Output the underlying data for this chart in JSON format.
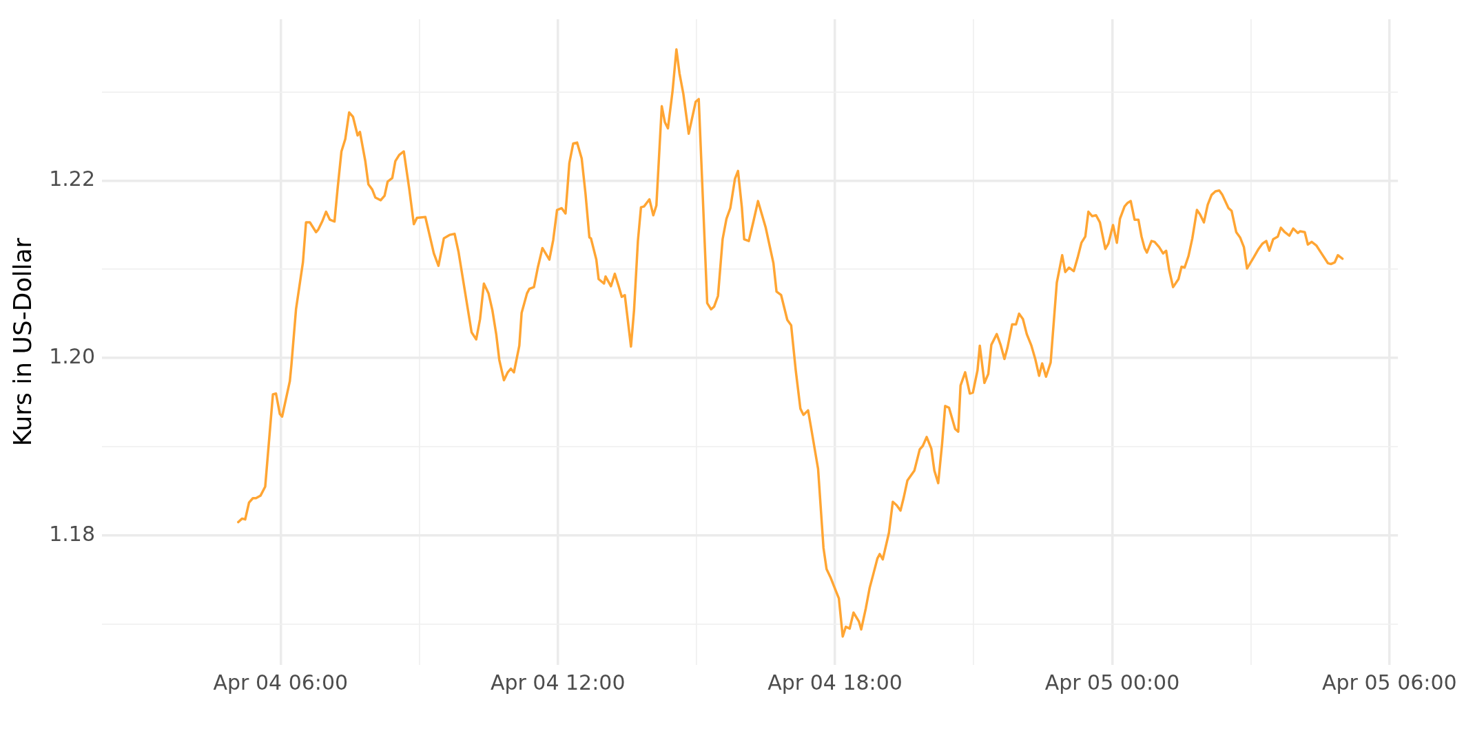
{
  "chart_data": {
    "type": "line",
    "ylabel": "Kurs in US-Dollar",
    "grid": true,
    "legend": false,
    "marker": "none",
    "line_style": "solid",
    "xlim": [
      "--04-04T02:08",
      "--04-05T06:11"
    ],
    "ylim": [
      1.1654,
      1.2382
    ],
    "xticks": [
      {
        "value": "--04-04T06:00",
        "label": "Apr 04 06:00"
      },
      {
        "value": "--04-04T09:00",
        "label": null
      },
      {
        "value": "--04-04T12:00",
        "label": "Apr 04 12:00"
      },
      {
        "value": "--04-04T15:00",
        "label": null
      },
      {
        "value": "--04-04T18:00",
        "label": "Apr 04 18:00"
      },
      {
        "value": "--04-04T21:00",
        "label": null
      },
      {
        "value": "--04-05T00:00",
        "label": "Apr 05 00:00"
      },
      {
        "value": "--04-05T03:00",
        "label": null
      },
      {
        "value": "--04-05T06:00",
        "label": "Apr 05 06:00"
      }
    ],
    "yticks": [
      {
        "value": 1.17,
        "label": null
      },
      1.18,
      {
        "value": 1.19,
        "label": null
      },
      {
        "value": 1.2,
        "label": "1.20"
      },
      {
        "value": 1.21,
        "label": null
      },
      1.22,
      {
        "value": 1.23,
        "label": null
      }
    ],
    "series": [
      {
        "color": "#ffa533",
        "x": [
          "--04-04T05:05",
          "--04-04T05:10",
          "--04-04T05:14",
          "--04-04T05:19",
          "--04-04T05:24",
          "--04-04T05:28",
          "--04-04T05:34",
          "--04-04T05:40",
          "--04-04T05:50",
          "--04-04T05:54",
          "--04-04T05:59",
          "--04-04T06:02",
          "--04-04T06:12",
          "--04-04T06:14",
          "--04-04T06:20",
          "--04-04T06:29",
          "--04-04T06:33",
          "--04-04T06:38",
          "--04-04T06:46",
          "--04-04T06:49",
          "--04-04T06:54",
          "--04-04T06:59",
          "--04-04T07:04",
          "--04-04T07:10",
          "--04-04T07:14",
          "--04-04T07:19",
          "--04-04T07:24",
          "--04-04T07:29",
          "--04-04T07:34",
          "--04-04T07:40",
          "--04-04T07:43",
          "--04-04T07:50",
          "--04-04T07:54",
          "--04-04T07:59",
          "--04-04T08:03",
          "--04-04T08:10",
          "--04-04T08:15",
          "--04-04T08:19",
          "--04-04T08:25",
          "--04-04T08:29",
          "--04-04T08:34",
          "--04-04T08:40",
          "--04-04T08:47",
          "--04-04T08:53",
          "--04-04T08:57",
          "--04-04T09:08",
          "--04-04T09:19",
          "--04-04T09:25",
          "--04-04T09:32",
          "--04-04T09:40",
          "--04-04T09:46",
          "--04-04T09:51",
          "--04-04T10:08",
          "--04-04T10:14",
          "--04-04T10:19",
          "--04-04T10:24",
          "--04-04T10:30",
          "--04-04T10:35",
          "--04-04T10:40",
          "--04-04T10:44",
          "--04-04T10:50",
          "--04-04T10:55",
          "--04-04T10:59",
          "--04-04T11:03",
          "--04-04T11:10",
          "--04-04T11:13",
          "--04-04T11:20",
          "--04-04T11:23",
          "--04-04T11:29",
          "--04-04T11:34",
          "--04-04T11:40",
          "--04-04T11:49",
          "--04-04T11:54",
          "--04-04T11:59",
          "--04-04T12:05",
          "--04-04T12:10",
          "--04-04T12:15",
          "--04-04T12:20",
          "--04-04T12:25",
          "--04-04T12:31",
          "--04-04T12:36",
          "--04-04T12:41",
          "--04-04T12:43",
          "--04-04T12:50",
          "--04-04T12:53",
          "--04-04T13:00",
          "--04-04T13:02",
          "--04-04T13:09",
          "--04-04T13:14",
          "--04-04T13:19",
          "--04-04T13:23",
          "--04-04T13:27",
          "--04-04T13:35",
          "--04-04T13:39",
          "--04-04T13:44",
          "--04-04T13:48",
          "--04-04T13:52",
          "--04-04T13:59",
          "--04-04T14:04",
          "--04-04T14:08",
          "--04-04T14:15",
          "--04-04T14:19",
          "--04-04T14:23",
          "--04-04T14:29",
          "--04-04T14:34",
          "--04-04T14:38",
          "--04-04T14:43",
          "--04-04T14:50",
          "--04-04T14:59",
          "--04-04T15:03",
          "--04-04T15:14",
          "--04-04T15:19",
          "--04-04T15:23",
          "--04-04T15:28",
          "--04-04T15:34",
          "--04-04T15:39",
          "--04-04T15:44",
          "--04-04T15:50",
          "--04-04T15:54",
          "--04-04T15:59",
          "--04-04T16:02",
          "--04-04T16:08",
          "--04-04T16:14",
          "--04-04T16:20",
          "--04-04T16:25",
          "--04-04T16:30",
          "--04-04T16:40",
          "--04-04T16:44",
          "--04-04T16:50",
          "--04-04T16:58",
          "--04-04T17:03",
          "--04-04T17:09",
          "--04-04T17:15",
          "--04-04T17:19",
          "--04-04T17:25",
          "--04-04T17:29",
          "--04-04T17:38",
          "--04-04T17:45",
          "--04-04T17:49",
          "--04-04T17:54",
          "--04-04T17:59",
          "--04-04T18:05",
          "--04-04T18:10",
          "--04-04T18:14",
          "--04-04T18:19",
          "--04-04T18:24",
          "--04-04T18:31",
          "--04-04T18:34",
          "--04-04T18:40",
          "--04-04T18:45",
          "--04-04T18:49",
          "--04-04T18:55",
          "--04-04T18:58",
          "--04-04T19:02",
          "--04-04T19:10",
          "--04-04T19:15",
          "--04-04T19:20",
          "--04-04T19:25",
          "--04-04T19:29",
          "--04-04T19:34",
          "--04-04T19:43",
          "--04-04T19:50",
          "--04-04T19:54",
          "--04-04T19:59",
          "--04-04T20:05",
          "--04-04T20:09",
          "--04-04T20:14",
          "--04-04T20:19",
          "--04-04T20:23",
          "--04-04T20:28",
          "--04-04T20:36",
          "--04-04T20:40",
          "--04-04T20:43",
          "--04-04T20:49",
          "--04-04T20:55",
          "--04-04T20:59",
          "--04-04T21:05",
          "--04-04T21:08",
          "--04-04T21:14",
          "--04-04T21:19",
          "--04-04T21:23",
          "--04-04T21:30",
          "--04-04T21:35",
          "--04-04T21:40",
          "--04-04T21:44",
          "--04-04T21:50",
          "--04-04T21:55",
          "--04-04T21:59",
          "--04-04T22:04",
          "--04-04T22:09",
          "--04-04T22:15",
          "--04-04T22:20",
          "--04-04T22:25",
          "--04-04T22:29",
          "--04-04T22:34",
          "--04-04T22:40",
          "--04-04T22:48",
          "--04-04T22:55",
          "--04-04T22:59",
          "--04-04T23:04",
          "--04-04T23:10",
          "--04-04T23:15",
          "--04-04T23:20",
          "--04-04T23:25",
          "--04-04T23:29",
          "--04-04T23:34",
          "--04-04T23:39",
          "--04-04T23:44",
          "--04-04T23:51",
          "--04-04T23:55",
          "--04-05T00:01",
          "--04-05T00:06",
          "--04-05T00:10",
          "--04-05T00:16",
          "--04-05T00:20",
          "--04-05T00:24",
          "--04-05T00:29",
          "--04-05T00:34",
          "--04-05T00:38",
          "--04-05T00:42",
          "--04-05T00:45",
          "--04-05T00:51",
          "--04-05T00:55",
          "--04-05T01:01",
          "--04-05T01:06",
          "--04-05T01:10",
          "--04-05T01:14",
          "--04-05T01:19",
          "--04-05T01:26",
          "--04-05T01:30",
          "--04-05T01:34",
          "--04-05T01:39",
          "--04-05T01:44",
          "--04-05T01:50",
          "--04-05T01:54",
          "--04-05T01:59",
          "--04-05T02:04",
          "--04-05T02:09",
          "--04-05T02:14",
          "--04-05T02:19",
          "--04-05T02:23",
          "--04-05T02:31",
          "--04-05T02:35",
          "--04-05T02:41",
          "--04-05T02:46",
          "--04-05T02:51",
          "--04-05T02:55",
          "--04-05T03:04",
          "--04-05T03:10",
          "--04-05T03:15",
          "--04-05T03:20",
          "--04-05T03:24",
          "--04-05T03:29",
          "--04-05T03:35",
          "--04-05T03:39",
          "--04-05T03:44",
          "--04-05T03:50",
          "--04-05T03:55",
          "--04-05T04:01",
          "--04-05T04:04",
          "--04-05T04:10",
          "--04-05T04:14",
          "--04-05T04:19",
          "--04-05T04:25",
          "--04-05T04:31",
          "--04-05T04:40",
          "--04-05T04:44",
          "--04-05T04:49",
          "--04-05T04:53",
          "--04-05T04:59"
        ],
        "values": [
          1.1815,
          1.1819,
          1.1818,
          1.1837,
          1.1842,
          1.1842,
          1.1845,
          1.1855,
          1.1959,
          1.196,
          1.1937,
          1.1934,
          1.1974,
          1.1992,
          1.2055,
          1.2108,
          1.2153,
          1.2153,
          1.2142,
          1.2145,
          1.2154,
          1.2165,
          1.2156,
          1.2154,
          1.2191,
          1.2233,
          1.2247,
          1.2277,
          1.2272,
          1.2251,
          1.2255,
          1.2222,
          1.2196,
          1.219,
          1.2181,
          1.2178,
          1.2183,
          1.2199,
          1.2203,
          1.2222,
          1.2229,
          1.2233,
          1.2191,
          1.2151,
          1.2158,
          1.2159,
          1.2118,
          1.2104,
          1.2135,
          1.2139,
          1.214,
          1.212,
          1.2029,
          1.2021,
          1.2044,
          1.2084,
          1.2073,
          1.2054,
          1.2027,
          1.1998,
          1.1975,
          1.1984,
          1.1988,
          1.1984,
          1.2014,
          1.2051,
          1.2073,
          1.2078,
          1.208,
          1.2102,
          1.2124,
          1.2111,
          1.2133,
          1.2167,
          1.2169,
          1.2163,
          1.222,
          1.2242,
          1.2243,
          1.2225,
          1.2185,
          1.2136,
          1.2135,
          1.2111,
          1.2089,
          1.2084,
          1.2092,
          1.2081,
          1.2095,
          1.2081,
          1.2069,
          1.2071,
          1.2013,
          1.2054,
          1.2132,
          1.217,
          1.2171,
          1.2179,
          1.2161,
          1.2172,
          1.2284,
          1.2266,
          1.2259,
          1.2301,
          1.2348,
          1.2321,
          1.2298,
          1.2253,
          1.2289,
          1.2292,
          1.2062,
          1.2055,
          1.2058,
          1.207,
          1.2134,
          1.2157,
          1.2169,
          1.2202,
          1.2211,
          1.217,
          1.2134,
          1.2132,
          1.2154,
          1.2177,
          1.2162,
          1.2147,
          1.2107,
          1.2075,
          1.2071,
          1.2043,
          1.2037,
          1.1986,
          1.1943,
          1.1936,
          1.1941,
          1.1921,
          1.1875,
          1.1786,
          1.1762,
          1.1753,
          1.1742,
          1.1729,
          1.1686,
          1.1697,
          1.1695,
          1.1713,
          1.1703,
          1.1694,
          1.1718,
          1.1741,
          1.1754,
          1.1774,
          1.1779,
          1.1773,
          1.1803,
          1.1838,
          1.1834,
          1.1828,
          1.1842,
          1.1862,
          1.1873,
          1.1897,
          1.1901,
          1.1911,
          1.1898,
          1.1873,
          1.1859,
          1.1903,
          1.1946,
          1.1944,
          1.192,
          1.1917,
          1.1969,
          1.1984,
          1.196,
          1.1961,
          1.1986,
          1.2014,
          1.1972,
          1.1982,
          1.2015,
          1.2027,
          1.2015,
          1.1999,
          1.2012,
          1.2038,
          1.2038,
          1.205,
          1.2044,
          1.2027,
          1.2014,
          1.1999,
          1.198,
          1.1994,
          1.1979,
          1.1995,
          1.2085,
          1.2116,
          1.2097,
          1.2102,
          1.2098,
          1.2113,
          1.213,
          1.2137,
          1.2165,
          1.216,
          1.2161,
          1.2153,
          1.2123,
          1.2129,
          1.215,
          1.213,
          1.2157,
          1.2171,
          1.2175,
          1.2177,
          1.2156,
          1.2156,
          1.2137,
          1.2124,
          1.2119,
          1.2132,
          1.2131,
          1.2125,
          1.2118,
          1.2121,
          1.2099,
          1.208,
          1.2089,
          1.2103,
          1.2102,
          1.2115,
          1.2135,
          1.2167,
          1.2162,
          1.2153,
          1.2173,
          1.2184,
          1.2188,
          1.2189,
          1.2184,
          1.2169,
          1.2166,
          1.2142,
          1.2136,
          1.2125,
          1.2101,
          1.2114,
          1.2123,
          1.2129,
          1.2132,
          1.2121,
          1.2134,
          1.2137,
          1.2147,
          1.2142,
          1.2138,
          1.2146,
          1.2141,
          1.2143,
          1.2142,
          1.2128,
          1.2131,
          1.2127,
          1.2119,
          1.2107,
          1.2106,
          1.2108,
          1.2116,
          1.2112
        ]
      }
    ]
  }
}
